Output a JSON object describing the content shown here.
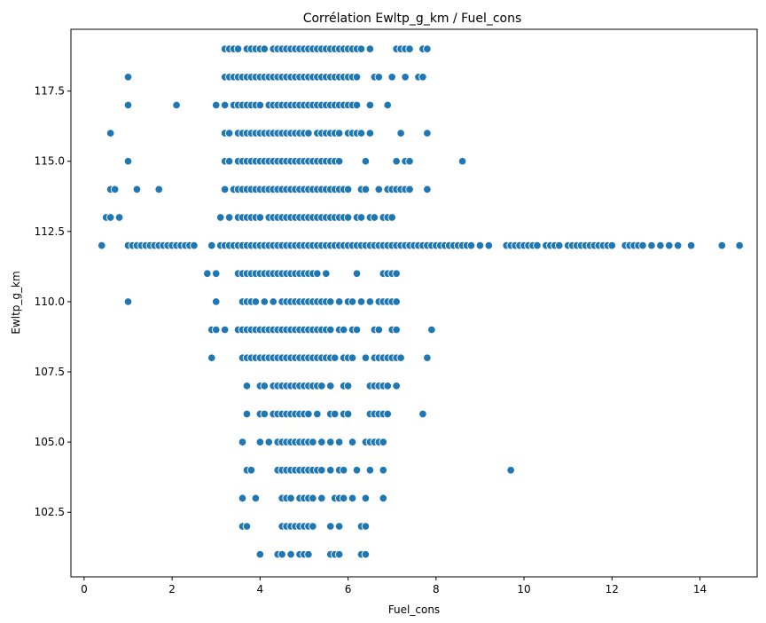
{
  "chart_data": {
    "type": "scatter",
    "title": "Corrélation Ewltp_g_km / Fuel_cons",
    "xlabel": "Fuel_cons",
    "ylabel": "Ewltp_g_km",
    "xlim": [
      -0.3,
      15.3
    ],
    "ylim": [
      100.2,
      119.7
    ],
    "xticks": [
      0,
      2,
      4,
      6,
      8,
      10,
      12,
      14
    ],
    "xtick_labels": [
      "0",
      "2",
      "4",
      "6",
      "8",
      "10",
      "12",
      "14"
    ],
    "yticks": [
      102.5,
      105.0,
      107.5,
      110.0,
      112.5,
      115.0,
      117.5
    ],
    "ytick_labels": [
      "102.5",
      "105.0",
      "107.5",
      "110.0",
      "112.5",
      "115.0",
      "117.5"
    ],
    "grid": false,
    "legend": "none",
    "marker_color": "#1f77b4",
    "marker_edge_color": "#ffffff",
    "rows": [
      {
        "y": 119,
        "x": [
          3.2,
          3.3,
          3.4,
          3.5,
          3.7,
          3.8,
          3.9,
          4.0,
          4.1,
          4.3,
          4.4,
          4.5,
          4.6,
          4.7,
          4.8,
          4.9,
          5.0,
          5.1,
          5.2,
          5.3,
          5.4,
          5.5,
          5.6,
          5.7,
          5.8,
          5.9,
          6.0,
          6.1,
          6.2,
          6.3,
          6.5,
          7.1,
          7.2,
          7.3,
          7.4,
          7.7,
          7.8
        ]
      },
      {
        "y": 118,
        "x": [
          1.0,
          3.2,
          3.3,
          3.4,
          3.5,
          3.6,
          3.7,
          3.8,
          3.9,
          4.0,
          4.1,
          4.2,
          4.3,
          4.4,
          4.5,
          4.6,
          4.7,
          4.8,
          4.9,
          5.0,
          5.1,
          5.2,
          5.3,
          5.4,
          5.5,
          5.6,
          5.7,
          5.8,
          5.9,
          6.0,
          6.1,
          6.2,
          6.6,
          6.7,
          7.0,
          7.3,
          7.6,
          7.7
        ]
      },
      {
        "y": 117,
        "x": [
          1.0,
          2.1,
          3.0,
          3.2,
          3.4,
          3.5,
          3.6,
          3.7,
          3.8,
          3.9,
          4.0,
          4.2,
          4.3,
          4.4,
          4.5,
          4.6,
          4.7,
          4.8,
          4.9,
          5.0,
          5.1,
          5.2,
          5.3,
          5.4,
          5.5,
          5.6,
          5.7,
          5.8,
          5.9,
          6.0,
          6.1,
          6.2,
          6.5,
          6.9
        ]
      },
      {
        "y": 116,
        "x": [
          0.6,
          3.2,
          3.3,
          3.5,
          3.6,
          3.7,
          3.8,
          3.9,
          4.0,
          4.1,
          4.2,
          4.3,
          4.4,
          4.5,
          4.6,
          4.7,
          4.8,
          4.9,
          5.0,
          5.1,
          5.3,
          5.4,
          5.5,
          5.6,
          5.7,
          5.8,
          6.0,
          6.1,
          6.2,
          6.3,
          6.5,
          7.2,
          7.8
        ]
      },
      {
        "y": 115,
        "x": [
          1.0,
          3.2,
          3.3,
          3.5,
          3.6,
          3.7,
          3.8,
          3.9,
          4.0,
          4.1,
          4.2,
          4.3,
          4.4,
          4.5,
          4.6,
          4.7,
          4.8,
          4.9,
          5.0,
          5.1,
          5.2,
          5.3,
          5.4,
          5.5,
          5.6,
          5.7,
          5.8,
          6.4,
          7.1,
          7.3,
          7.4,
          8.6
        ]
      },
      {
        "y": 114,
        "x": [
          0.6,
          0.7,
          1.2,
          1.7,
          3.2,
          3.4,
          3.5,
          3.6,
          3.7,
          3.8,
          3.9,
          4.0,
          4.1,
          4.2,
          4.3,
          4.4,
          4.5,
          4.6,
          4.7,
          4.8,
          4.9,
          5.0,
          5.1,
          5.2,
          5.3,
          5.4,
          5.5,
          5.6,
          5.7,
          5.8,
          5.9,
          6.0,
          6.3,
          6.4,
          6.7,
          6.9,
          7.0,
          7.1,
          7.2,
          7.3,
          7.4,
          7.8
        ]
      },
      {
        "y": 113,
        "x": [
          0.5,
          0.6,
          0.8,
          3.1,
          3.3,
          3.5,
          3.6,
          3.7,
          3.8,
          3.9,
          4.0,
          4.2,
          4.3,
          4.4,
          4.5,
          4.6,
          4.7,
          4.8,
          4.9,
          5.0,
          5.1,
          5.2,
          5.3,
          5.4,
          5.5,
          5.6,
          5.7,
          5.8,
          5.9,
          6.0,
          6.2,
          6.3,
          6.5,
          6.6,
          6.8,
          6.9,
          7.0
        ]
      },
      {
        "y": 112,
        "x": [
          0.4,
          1.0,
          1.1,
          1.2,
          1.3,
          1.4,
          1.5,
          1.6,
          1.7,
          1.8,
          1.9,
          2.0,
          2.1,
          2.2,
          2.3,
          2.4,
          2.5,
          2.9,
          3.1,
          3.2,
          3.3,
          3.4,
          3.5,
          3.6,
          3.7,
          3.8,
          3.9,
          4.0,
          4.1,
          4.2,
          4.3,
          4.4,
          4.5,
          4.6,
          4.7,
          4.8,
          4.9,
          5.0,
          5.1,
          5.2,
          5.3,
          5.4,
          5.5,
          5.6,
          5.7,
          5.8,
          5.9,
          6.0,
          6.1,
          6.2,
          6.3,
          6.4,
          6.5,
          6.6,
          6.7,
          6.8,
          6.9,
          7.0,
          7.1,
          7.2,
          7.3,
          7.4,
          7.5,
          7.6,
          7.7,
          7.8,
          7.9,
          8.0,
          8.1,
          8.2,
          8.3,
          8.4,
          8.5,
          8.6,
          8.7,
          8.8,
          9.0,
          9.2,
          9.6,
          9.7,
          9.8,
          9.9,
          10.0,
          10.1,
          10.2,
          10.3,
          10.5,
          10.6,
          10.7,
          10.8,
          11.0,
          11.1,
          11.2,
          11.3,
          11.4,
          11.5,
          11.6,
          11.7,
          11.8,
          11.9,
          12.0,
          12.3,
          12.4,
          12.5,
          12.6,
          12.7,
          12.9,
          13.1,
          13.3,
          13.5,
          13.8,
          14.5,
          14.9
        ]
      },
      {
        "y": 111,
        "x": [
          2.8,
          3.0,
          3.5,
          3.6,
          3.7,
          3.8,
          3.9,
          4.0,
          4.1,
          4.2,
          4.3,
          4.4,
          4.5,
          4.6,
          4.7,
          4.8,
          4.9,
          5.0,
          5.1,
          5.2,
          5.3,
          5.5,
          6.2,
          6.8,
          6.9,
          7.0,
          7.1
        ]
      },
      {
        "y": 110,
        "x": [
          1.0,
          3.0,
          3.6,
          3.7,
          3.8,
          3.9,
          4.1,
          4.3,
          4.5,
          4.6,
          4.7,
          4.8,
          4.9,
          5.0,
          5.1,
          5.2,
          5.3,
          5.4,
          5.5,
          5.6,
          5.8,
          6.0,
          6.1,
          6.3,
          6.5,
          6.7,
          6.8,
          6.9,
          7.0,
          7.1
        ]
      },
      {
        "y": 109,
        "x": [
          2.9,
          3.0,
          3.2,
          3.5,
          3.6,
          3.7,
          3.8,
          3.9,
          4.0,
          4.1,
          4.2,
          4.3,
          4.4,
          4.5,
          4.6,
          4.7,
          4.8,
          4.9,
          5.0,
          5.1,
          5.2,
          5.3,
          5.4,
          5.5,
          5.6,
          5.8,
          5.9,
          6.1,
          6.2,
          6.6,
          6.7,
          7.0,
          7.1,
          7.9
        ]
      },
      {
        "y": 108,
        "x": [
          2.9,
          3.6,
          3.7,
          3.8,
          3.9,
          4.0,
          4.1,
          4.2,
          4.3,
          4.4,
          4.5,
          4.6,
          4.7,
          4.8,
          4.9,
          5.0,
          5.1,
          5.2,
          5.3,
          5.4,
          5.5,
          5.6,
          5.7,
          5.9,
          6.0,
          6.1,
          6.4,
          6.6,
          6.7,
          6.8,
          6.9,
          7.0,
          7.1,
          7.2,
          7.8
        ]
      },
      {
        "y": 107,
        "x": [
          3.7,
          4.0,
          4.1,
          4.3,
          4.4,
          4.5,
          4.6,
          4.7,
          4.8,
          4.9,
          5.0,
          5.1,
          5.2,
          5.3,
          5.4,
          5.6,
          5.9,
          6.0,
          6.5,
          6.6,
          6.7,
          6.8,
          6.9,
          7.1
        ]
      },
      {
        "y": 106,
        "x": [
          3.7,
          4.0,
          4.1,
          4.3,
          4.4,
          4.5,
          4.6,
          4.7,
          4.8,
          4.9,
          5.0,
          5.1,
          5.3,
          5.6,
          5.7,
          5.9,
          6.0,
          6.5,
          6.6,
          6.7,
          6.8,
          6.9,
          7.7
        ]
      },
      {
        "y": 105,
        "x": [
          3.6,
          4.0,
          4.2,
          4.4,
          4.5,
          4.6,
          4.7,
          4.8,
          4.9,
          5.0,
          5.1,
          5.2,
          5.4,
          5.6,
          5.8,
          6.1,
          6.4,
          6.5,
          6.6,
          6.7,
          6.8
        ]
      },
      {
        "y": 104,
        "x": [
          3.7,
          3.8,
          4.4,
          4.5,
          4.6,
          4.7,
          4.8,
          4.9,
          5.0,
          5.1,
          5.2,
          5.3,
          5.4,
          5.6,
          5.8,
          5.9,
          6.2,
          6.5,
          6.8,
          9.7
        ]
      },
      {
        "y": 103,
        "x": [
          3.6,
          3.9,
          4.5,
          4.6,
          4.7,
          4.9,
          5.0,
          5.1,
          5.2,
          5.4,
          5.7,
          5.8,
          5.9,
          6.1,
          6.4,
          6.8
        ]
      },
      {
        "y": 102,
        "x": [
          3.6,
          3.7,
          4.5,
          4.6,
          4.7,
          4.8,
          4.9,
          5.0,
          5.1,
          5.2,
          5.6,
          5.8,
          6.3,
          6.4
        ]
      },
      {
        "y": 101,
        "x": [
          4.0,
          4.4,
          4.5,
          4.7,
          4.9,
          5.0,
          5.1,
          5.6,
          5.7,
          5.8,
          6.3,
          6.4
        ]
      }
    ]
  }
}
